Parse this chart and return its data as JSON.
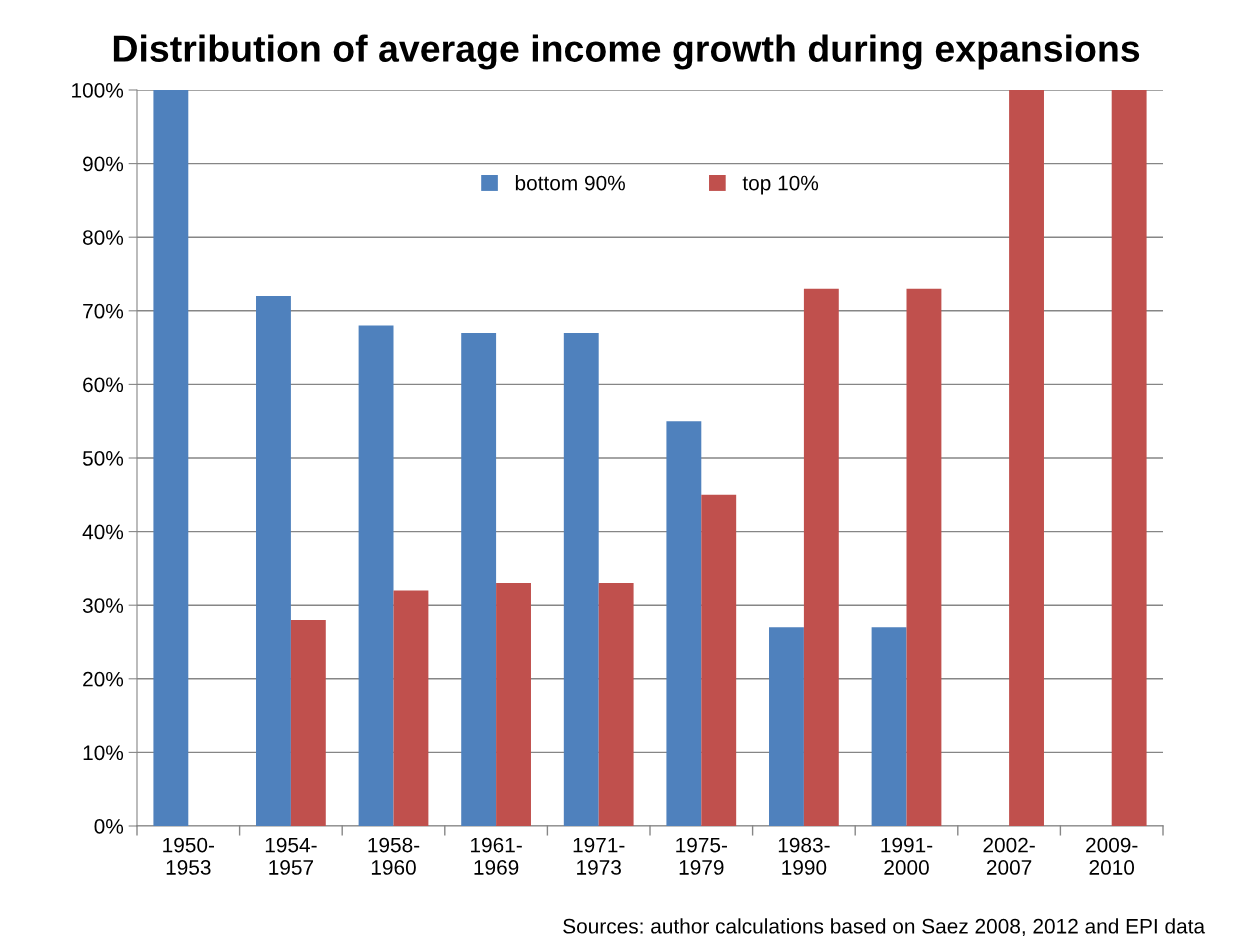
{
  "chart_data": {
    "type": "bar",
    "title": "Distribution of average income growth during expansions",
    "categories": [
      "1950-\n1953",
      "1954-\n1957",
      "1958-\n1960",
      "1961-\n1969",
      "1971-\n1973",
      "1975-\n1979",
      "1983-\n1990",
      "1991-\n2000",
      "2002-\n2007",
      "2009-\n2010"
    ],
    "series": [
      {
        "name": "bottom 90%",
        "color": "#4f81bd",
        "values": [
          100,
          72,
          68,
          67,
          67,
          55,
          27,
          27,
          null,
          null
        ]
      },
      {
        "name": "top 10%",
        "color": "#c0504d",
        "values": [
          null,
          28,
          32,
          33,
          33,
          45,
          73,
          73,
          100,
          100
        ]
      }
    ],
    "ylim": [
      0,
      100
    ],
    "yticks": [
      {
        "value": 0,
        "label": "0%"
      },
      {
        "value": 10,
        "label": "10%"
      },
      {
        "value": 20,
        "label": "20%"
      },
      {
        "value": 30,
        "label": "30%"
      },
      {
        "value": 40,
        "label": "40%"
      },
      {
        "value": 50,
        "label": "50%"
      },
      {
        "value": 60,
        "label": "60%"
      },
      {
        "value": 70,
        "label": "70%"
      },
      {
        "value": 80,
        "label": "80%"
      },
      {
        "value": 90,
        "label": "90%"
      },
      {
        "value": 100,
        "label": "100%"
      }
    ],
    "grid": "y",
    "legend": "top",
    "annotations": [
      "Sources: author calculations based on Saez 2008, 2012 and EPI data"
    ]
  }
}
